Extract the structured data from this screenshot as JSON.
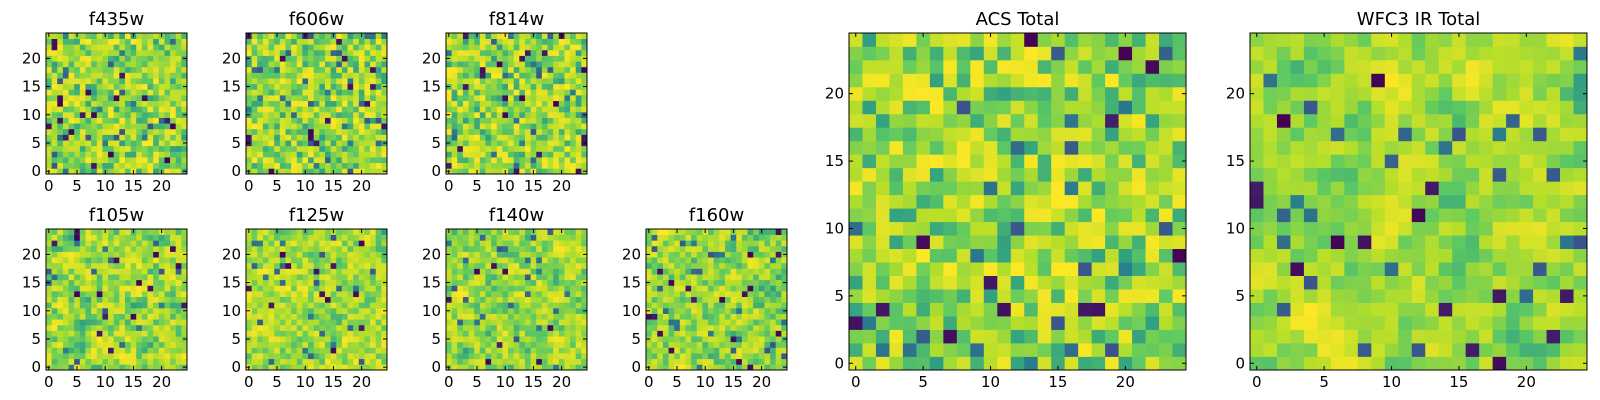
{
  "figure": {
    "colormap": "viridis",
    "colormap_stops": [
      "#440154",
      "#3b528b",
      "#21918c",
      "#5ec962",
      "#b5de2b",
      "#fde725"
    ],
    "pixel_grid": 25
  },
  "chart_data": [
    {
      "type": "heatmap",
      "title": "f435w",
      "grid": 25,
      "seed": 11,
      "smooth": 0,
      "xticks": [
        "0",
        "5",
        "10",
        "15",
        "20"
      ],
      "yticks": [
        "0",
        "5",
        "10",
        "15",
        "20"
      ],
      "xlim": [
        0,
        25
      ],
      "ylim": [
        0,
        25
      ]
    },
    {
      "type": "heatmap",
      "title": "f606w",
      "grid": 25,
      "seed": 23,
      "smooth": 0,
      "xticks": [
        "0",
        "5",
        "10",
        "15",
        "20"
      ],
      "yticks": [
        "0",
        "5",
        "10",
        "15",
        "20"
      ],
      "xlim": [
        0,
        25
      ],
      "ylim": [
        0,
        25
      ]
    },
    {
      "type": "heatmap",
      "title": "f814w",
      "grid": 25,
      "seed": 37,
      "smooth": 0,
      "xticks": [
        "0",
        "5",
        "10",
        "15",
        "20"
      ],
      "yticks": [
        "0",
        "5",
        "10",
        "15",
        "20"
      ],
      "xlim": [
        0,
        25
      ],
      "ylim": [
        0,
        25
      ]
    },
    {
      "type": "heatmap",
      "title": "f105w",
      "grid": 25,
      "seed": 41,
      "smooth": 1,
      "xticks": [
        "0",
        "5",
        "10",
        "15",
        "20"
      ],
      "yticks": [
        "0",
        "5",
        "10",
        "15",
        "20"
      ],
      "xlim": [
        0,
        25
      ],
      "ylim": [
        0,
        25
      ]
    },
    {
      "type": "heatmap",
      "title": "f125w",
      "grid": 25,
      "seed": 53,
      "smooth": 1,
      "xticks": [
        "0",
        "5",
        "10",
        "15",
        "20"
      ],
      "yticks": [
        "0",
        "5",
        "10",
        "15",
        "20"
      ],
      "xlim": [
        0,
        25
      ],
      "ylim": [
        0,
        25
      ]
    },
    {
      "type": "heatmap",
      "title": "f140w",
      "grid": 25,
      "seed": 67,
      "smooth": 1,
      "xticks": [
        "0",
        "5",
        "10",
        "15",
        "20"
      ],
      "yticks": [
        "0",
        "5",
        "10",
        "15",
        "20"
      ],
      "xlim": [
        0,
        25
      ],
      "ylim": [
        0,
        25
      ]
    },
    {
      "type": "heatmap",
      "title": "f160w",
      "grid": 25,
      "seed": 79,
      "smooth": 1,
      "xticks": [
        "0",
        "5",
        "10",
        "15",
        "20"
      ],
      "yticks": [
        "0",
        "5",
        "10",
        "15",
        "20"
      ],
      "xlim": [
        0,
        25
      ],
      "ylim": [
        0,
        25
      ]
    },
    {
      "type": "heatmap",
      "title": "ACS Total",
      "grid": 25,
      "seed": 97,
      "smooth": 0,
      "xticks": [
        "0",
        "5",
        "10",
        "15",
        "20"
      ],
      "yticks": [
        "0",
        "5",
        "10",
        "15",
        "20"
      ],
      "xlim": [
        0,
        25
      ],
      "ylim": [
        0,
        25
      ]
    },
    {
      "type": "heatmap",
      "title": "WFC3 IR Total",
      "grid": 25,
      "seed": 113,
      "smooth": 2,
      "xticks": [
        "0",
        "5",
        "10",
        "15",
        "20"
      ],
      "yticks": [
        "0",
        "5",
        "10",
        "15",
        "20"
      ],
      "xlim": [
        0,
        25
      ],
      "ylim": [
        0,
        25
      ]
    }
  ]
}
